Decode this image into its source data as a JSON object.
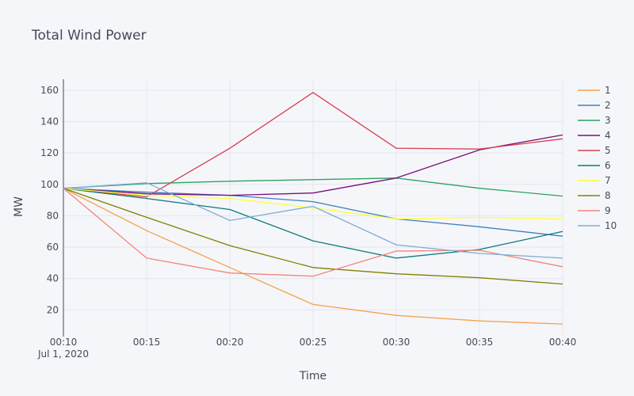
{
  "chart_data": {
    "type": "line",
    "title": "Total Wind Power",
    "xlabel": "Time",
    "ylabel": "MW",
    "x": [
      "00:10",
      "00:15",
      "00:20",
      "00:25",
      "00:30",
      "00:35",
      "00:40"
    ],
    "x_date_label": "Jul 1, 2020",
    "ylim": [
      3,
      167
    ],
    "yticks": [
      20,
      40,
      60,
      80,
      100,
      120,
      140,
      160
    ],
    "grid": true,
    "legend_position": "right",
    "series": [
      {
        "name": "1",
        "color": "#f5a14a",
        "values": [
          97.5,
          70.5,
          47,
          23.5,
          16.5,
          13,
          11
        ]
      },
      {
        "name": "2",
        "color": "#3d80c1",
        "values": [
          97.5,
          95,
          93,
          89,
          78,
          73,
          67
        ]
      },
      {
        "name": "3",
        "color": "#2ca25f",
        "values": [
          97.5,
          100.5,
          102,
          103,
          104,
          97.5,
          92.5
        ]
      },
      {
        "name": "4",
        "color": "#7a0f7a",
        "values": [
          97.5,
          94,
          93,
          94.5,
          104,
          122,
          131.5
        ]
      },
      {
        "name": "5",
        "color": "#d6404f",
        "values": [
          97.5,
          92,
          123,
          158.5,
          123,
          122.5,
          129
        ]
      },
      {
        "name": "6",
        "color": "#0a7a78",
        "values": [
          97.5,
          91,
          84,
          64,
          53,
          58.5,
          70
        ]
      },
      {
        "name": "7",
        "color": "#ffff33",
        "values": [
          97.5,
          93,
          91,
          85,
          78,
          79,
          78
        ]
      },
      {
        "name": "8",
        "color": "#808000",
        "values": [
          97.5,
          79,
          61,
          47,
          43,
          40.5,
          36.5
        ]
      },
      {
        "name": "9",
        "color": "#f4847a",
        "values": [
          97.5,
          53,
          43.5,
          41.5,
          57.5,
          58,
          47.5
        ]
      },
      {
        "name": "10",
        "color": "#7eaed6",
        "values": [
          97.5,
          101,
          77,
          86,
          61.5,
          56,
          53
        ]
      }
    ]
  }
}
